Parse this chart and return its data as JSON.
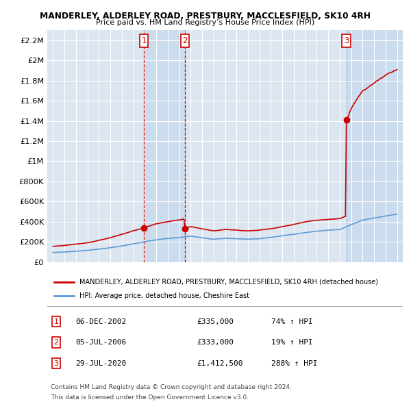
{
  "title": "MANDERLEY, ALDERLEY ROAD, PRESTBURY, MACCLESFIELD, SK10 4RH",
  "subtitle": "Price paid vs. HM Land Registry’s House Price Index (HPI)",
  "legend_line1": "MANDERLEY, ALDERLEY ROAD, PRESTBURY, MACCLESFIELD, SK10 4RH (detached house)",
  "legend_line2": "HPI: Average price, detached house, Cheshire East",
  "footnote1": "Contains HM Land Registry data © Crown copyright and database right 2024.",
  "footnote2": "This data is licensed under the Open Government Licence v3.0.",
  "sales": [
    {
      "num": 1,
      "date": "06-DEC-2002",
      "price": "£335,000",
      "change": "74% ↑ HPI",
      "year": 2002.92
    },
    {
      "num": 2,
      "date": "05-JUL-2006",
      "price": "£333,000",
      "change": "19% ↑ HPI",
      "year": 2006.5
    },
    {
      "num": 3,
      "date": "29-JUL-2020",
      "price": "£1,412,500",
      "change": "288% ↑ HPI",
      "year": 2020.58
    }
  ],
  "sale_prices": [
    335000,
    333000,
    1412500
  ],
  "ylim": [
    0,
    2300000
  ],
  "xlim": [
    1994.5,
    2025.5
  ],
  "background_color": "#ffffff",
  "plot_bg_color": "#dce6f1",
  "grid_color": "#ffffff",
  "red_color": "#cc0000",
  "blue_color": "#5b9bd5",
  "shade_color": "#c5d9ed",
  "vline_red_color": "#cc0000",
  "vline_blue_color": "#5b9bd5",
  "num_box_color": "#cc0000"
}
